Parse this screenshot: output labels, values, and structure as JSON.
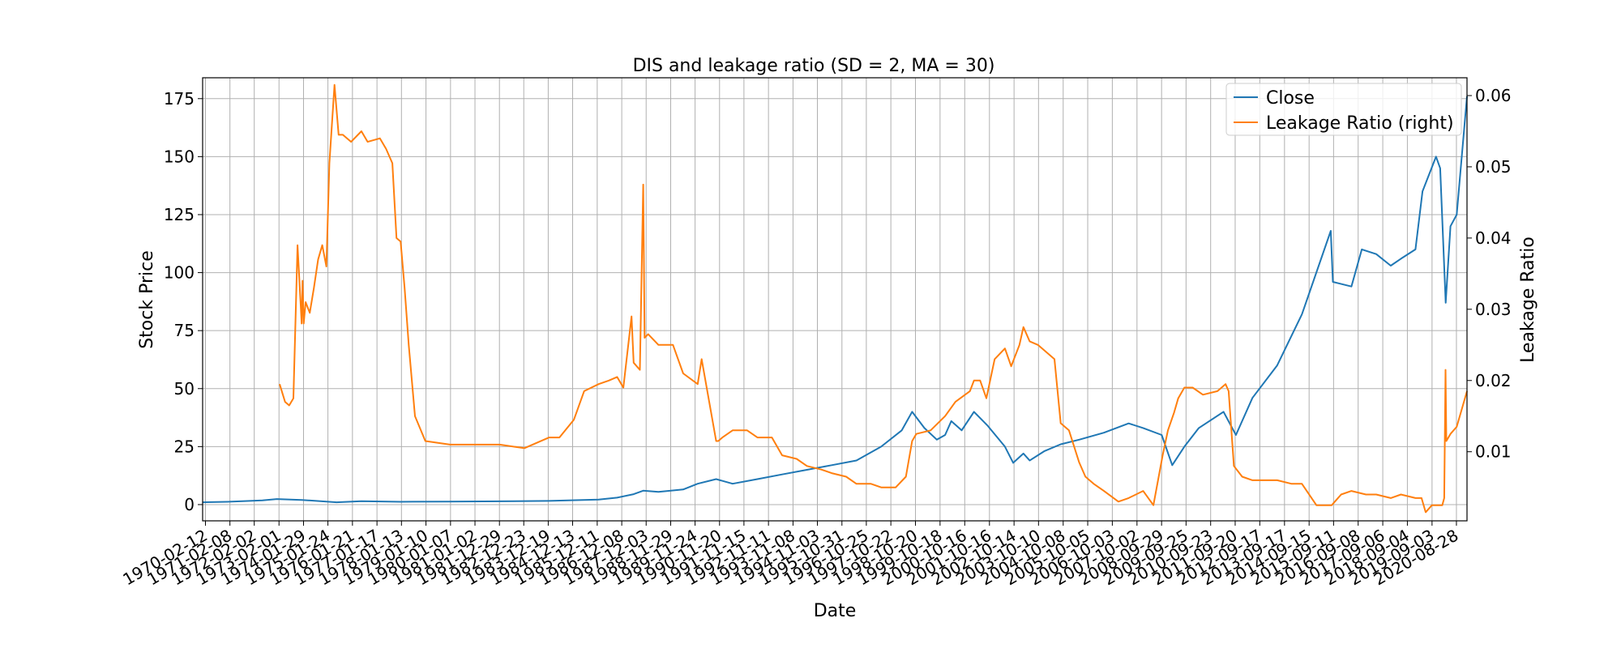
{
  "chart_data": {
    "type": "line",
    "title": "DIS and leakage ratio (SD = 2, MA = 30)",
    "xlabel": "Date",
    "ylabel": "Stock Price",
    "ylabel_right": "Leakage Ratio",
    "ylim": [
      -7,
      184
    ],
    "ylim_right": [
      0.0003,
      0.0625
    ],
    "xlim": [
      "1970-01-01",
      "2021-01-31"
    ],
    "yticks": [
      0,
      25,
      50,
      75,
      100,
      125,
      150,
      175
    ],
    "yticks_right": [
      0.01,
      0.02,
      0.03,
      0.04,
      0.05,
      0.06
    ],
    "ytick_labels_right": [
      "0.01",
      "0.02",
      "0.03",
      "0.04",
      "0.05",
      "0.06"
    ],
    "xticks": [
      "1970-02-12",
      "1971-02-08",
      "1972-02-02",
      "1973-02-01",
      "1974-01-29",
      "1975-01-24",
      "1976-01-21",
      "1977-01-17",
      "1978-01-13",
      "1979-01-10",
      "1980-01-07",
      "1981-01-02",
      "1981-12-29",
      "1982-12-23",
      "1983-12-19",
      "1984-12-13",
      "1985-12-11",
      "1986-12-08",
      "1987-12-03",
      "1988-11-29",
      "1989-11-24",
      "1990-11-20",
      "1991-11-15",
      "1992-11-11",
      "1993-11-08",
      "1994-11-03",
      "1995-10-31",
      "1996-10-25",
      "1997-10-22",
      "1998-10-20",
      "1999-10-18",
      "2000-10-16",
      "2001-10-16",
      "2002-10-14",
      "2003-10-10",
      "2004-10-08",
      "2005-10-05",
      "2006-10-03",
      "2007-10-02",
      "2008-09-29",
      "2009-09-25",
      "2010-09-23",
      "2011-09-20",
      "2012-09-17",
      "2013-09-17",
      "2014-09-15",
      "2015-09-11",
      "2016-09-08",
      "2017-09-06",
      "2018-09-04",
      "2019-09-03",
      "2020-08-28"
    ],
    "grid": true,
    "legend_position": "top-right",
    "series": [
      {
        "name": "Close",
        "axis": "left",
        "color": "#1f77b4",
        "x": [
          "1970-01-01",
          "1971-01-01",
          "1972-06-01",
          "1973-01-01",
          "1974-01-01",
          "1975-06-01",
          "1976-06-01",
          "1978-01-01",
          "1980-01-01",
          "1982-01-01",
          "1984-01-01",
          "1986-01-01",
          "1986-10-01",
          "1987-06-01",
          "1987-10-20",
          "1988-06-01",
          "1989-06-01",
          "1990-01-01",
          "1990-10-01",
          "1991-06-01",
          "1992-06-01",
          "1993-06-01",
          "1994-06-01",
          "1995-06-01",
          "1996-06-01",
          "1997-06-01",
          "1998-04-01",
          "1998-09-01",
          "1999-03-01",
          "1999-09-01",
          "2000-01-01",
          "2000-04-01",
          "2000-09-01",
          "2001-03-01",
          "2001-09-20",
          "2002-06-01",
          "2002-10-01",
          "2003-03-01",
          "2003-06-01",
          "2004-01-01",
          "2004-09-01",
          "2005-06-01",
          "2006-06-01",
          "2007-06-01",
          "2008-01-01",
          "2008-10-01",
          "2009-03-05",
          "2009-09-01",
          "2010-04-01",
          "2011-04-01",
          "2011-10-01",
          "2012-06-01",
          "2013-06-01",
          "2014-06-01",
          "2015-08-01",
          "2015-09-01",
          "2016-06-01",
          "2016-11-01",
          "2017-06-01",
          "2018-01-01",
          "2018-06-01",
          "2019-01-01",
          "2019-04-15",
          "2019-11-01",
          "2020-01-01",
          "2020-03-23",
          "2020-06-01",
          "2020-09-01",
          "2021-01-31"
        ],
        "values": [
          1.0,
          1.2,
          1.8,
          2.4,
          2.0,
          1.0,
          1.5,
          1.2,
          1.3,
          1.4,
          1.6,
          2.2,
          3.0,
          4.5,
          6.0,
          5.5,
          6.5,
          9.0,
          11.0,
          9.0,
          11.0,
          13.0,
          15.0,
          17.0,
          19.0,
          25.0,
          32.0,
          40.0,
          33.0,
          28.0,
          30.0,
          36.0,
          32.0,
          40.0,
          34.0,
          25.0,
          18.0,
          22.0,
          19.0,
          23.0,
          26.0,
          28.0,
          31.0,
          35.0,
          33.0,
          30.0,
          17.0,
          25.0,
          33.0,
          40.0,
          30.0,
          46.0,
          60.0,
          82.0,
          118.0,
          96.0,
          94.0,
          110.0,
          108.0,
          103.0,
          106.0,
          110.0,
          135.0,
          150.0,
          145.0,
          87.0,
          120.0,
          125.0,
          176.0
        ]
      },
      {
        "name": "Leakage Ratio (right)",
        "axis": "right",
        "color": "#ff7f0e",
        "x": [
          "1973-02-10",
          "1973-05-01",
          "1973-07-01",
          "1973-09-01",
          "1973-11-01",
          "1974-01-01",
          "1974-01-15",
          "1974-02-01",
          "1974-03-01",
          "1974-05-01",
          "1974-07-01",
          "1974-09-01",
          "1974-11-01",
          "1975-01-01",
          "1975-02-15",
          "1975-05-01",
          "1975-07-01",
          "1975-09-01",
          "1976-01-01",
          "1976-06-01",
          "1976-09-01",
          "1977-03-01",
          "1977-06-01",
          "1977-09-01",
          "1977-11-01",
          "1978-01-01",
          "1978-03-01",
          "1978-05-01",
          "1978-08-01",
          "1979-01-01",
          "1980-01-01",
          "1981-01-01",
          "1982-01-01",
          "1983-01-01",
          "1984-01-01",
          "1984-06-01",
          "1985-01-01",
          "1985-06-01",
          "1986-01-01",
          "1986-06-01",
          "1986-10-01",
          "1987-01-01",
          "1987-05-01",
          "1987-06-01",
          "1987-09-01",
          "1987-10-20",
          "1987-11-10",
          "1988-01-01",
          "1988-06-01",
          "1989-01-01",
          "1989-06-01",
          "1990-01-01",
          "1990-03-01",
          "1990-10-01",
          "1990-11-01",
          "1991-01-01",
          "1991-06-01",
          "1992-01-01",
          "1992-06-01",
          "1993-01-01",
          "1993-06-01",
          "1994-01-01",
          "1994-06-01",
          "1995-01-01",
          "1995-06-01",
          "1996-01-01",
          "1996-06-01",
          "1997-01-01",
          "1997-06-01",
          "1998-01-01",
          "1998-06-01",
          "1998-09-01",
          "1998-11-01",
          "1999-06-01",
          "2000-01-01",
          "2000-06-01",
          "2001-01-01",
          "2001-03-01",
          "2001-06-01",
          "2001-09-01",
          "2002-01-01",
          "2002-06-01",
          "2002-09-01",
          "2003-01-01",
          "2003-03-01",
          "2003-06-01",
          "2003-10-01",
          "2004-06-01",
          "2004-09-01",
          "2005-01-01",
          "2005-06-01",
          "2005-09-01",
          "2006-01-01",
          "2006-06-01",
          "2007-01-01",
          "2007-06-01",
          "2008-01-01",
          "2008-06-01",
          "2008-10-15",
          "2009-01-01",
          "2009-04-01",
          "2009-06-01",
          "2009-09-01",
          "2010-01-01",
          "2010-06-01",
          "2011-01-01",
          "2011-05-01",
          "2011-06-15",
          "2011-09-01",
          "2012-01-01",
          "2012-06-01",
          "2013-01-01",
          "2013-06-01",
          "2014-01-01",
          "2014-03-01",
          "2014-06-01",
          "2015-01-01",
          "2015-06-01",
          "2015-08-15",
          "2016-01-01",
          "2016-06-01",
          "2017-01-01",
          "2017-06-01",
          "2018-01-01",
          "2018-06-01",
          "2019-01-01",
          "2019-04-01",
          "2019-06-01",
          "2019-09-01",
          "2020-01-01",
          "2020-02-01",
          "2020-03-01",
          "2020-03-20",
          "2020-04-01",
          "2020-06-01",
          "2020-09-01",
          "2021-01-31"
        ],
        "values": [
          0.0195,
          0.017,
          0.0165,
          0.0175,
          0.039,
          0.028,
          0.034,
          0.028,
          0.031,
          0.0295,
          0.033,
          0.037,
          0.039,
          0.036,
          0.0505,
          0.0615,
          0.0545,
          0.0545,
          0.0535,
          0.055,
          0.0535,
          0.054,
          0.0525,
          0.0505,
          0.04,
          0.0395,
          0.033,
          0.025,
          0.015,
          0.0115,
          0.011,
          0.011,
          0.011,
          0.0105,
          0.012,
          0.012,
          0.0145,
          0.0185,
          0.0195,
          0.02,
          0.0205,
          0.019,
          0.029,
          0.0225,
          0.0215,
          0.0475,
          0.026,
          0.0265,
          0.025,
          0.025,
          0.021,
          0.0195,
          0.023,
          0.0115,
          0.0115,
          0.012,
          0.013,
          0.013,
          0.012,
          0.012,
          0.0095,
          0.009,
          0.008,
          0.0075,
          0.007,
          0.0065,
          0.0055,
          0.0055,
          0.005,
          0.005,
          0.0065,
          0.0115,
          0.0125,
          0.013,
          0.015,
          0.017,
          0.0185,
          0.02,
          0.02,
          0.0175,
          0.023,
          0.0245,
          0.022,
          0.025,
          0.0275,
          0.0255,
          0.025,
          0.023,
          0.014,
          0.013,
          0.0085,
          0.0065,
          0.0055,
          0.0045,
          0.003,
          0.0035,
          0.0045,
          0.0025,
          0.0095,
          0.013,
          0.0155,
          0.0175,
          0.019,
          0.019,
          0.018,
          0.0185,
          0.0195,
          0.0185,
          0.008,
          0.0065,
          0.006,
          0.006,
          0.006,
          0.0055,
          0.0055,
          0.0055,
          0.0025,
          0.0025,
          0.0025,
          0.004,
          0.0045,
          0.004,
          0.004,
          0.0035,
          0.004,
          0.0035,
          0.0035,
          0.0015,
          0.0025,
          0.0025,
          0.0025,
          0.0035,
          0.0215,
          0.0115,
          0.0125,
          0.0135,
          0.0185
        ]
      }
    ]
  }
}
